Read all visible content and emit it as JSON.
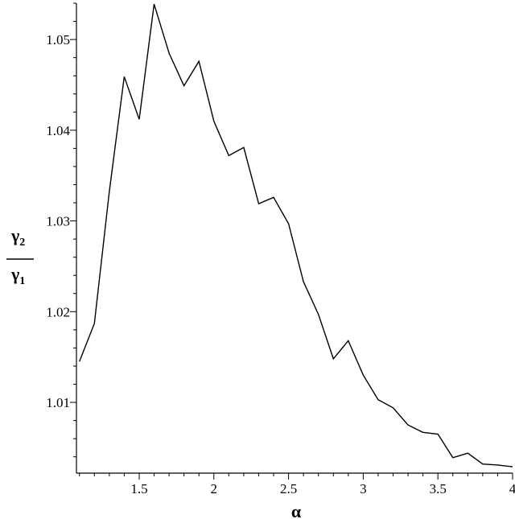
{
  "chart_data": {
    "type": "line",
    "title": "",
    "xlabel": "α",
    "ylabel": {
      "numerator": "γ",
      "numerator_sub": "2",
      "denominator": "γ",
      "denominator_sub": "1"
    },
    "xlim": [
      1.08,
      4.0
    ],
    "ylim": [
      1.0022,
      1.054
    ],
    "grid": false,
    "x_ticks": [
      1.5,
      2,
      2.5,
      3,
      3.5,
      4
    ],
    "x_tick_labels": [
      "1.5",
      "2",
      "2.5",
      "3",
      "3.5",
      "4"
    ],
    "y_ticks": [
      1.01,
      1.02,
      1.03,
      1.04,
      1.05
    ],
    "y_tick_labels": [
      "1.01",
      "1.02",
      "1.03",
      "1.04",
      "1.05"
    ],
    "series": [
      {
        "color": "#000000",
        "x": [
          1.1,
          1.2,
          1.3,
          1.4,
          1.5,
          1.6,
          1.7,
          1.8,
          1.9,
          2.0,
          2.1,
          2.2,
          2.3,
          2.4,
          2.5,
          2.6,
          2.7,
          2.8,
          2.9,
          3.0,
          3.1,
          3.2,
          3.3,
          3.4,
          3.5,
          3.6,
          3.7,
          3.8,
          3.9,
          4.0
        ],
        "values": [
          1.0145,
          1.0187,
          1.0332,
          1.0459,
          1.0412,
          1.0539,
          1.0485,
          1.0449,
          1.0476,
          1.041,
          1.0372,
          1.0381,
          1.0319,
          1.0326,
          1.0297,
          1.0233,
          1.0197,
          1.0148,
          1.0168,
          1.013,
          1.0103,
          1.0094,
          1.0075,
          1.0067,
          1.0065,
          1.0039,
          1.0044,
          1.0032,
          1.0031,
          1.0029
        ]
      }
    ]
  }
}
